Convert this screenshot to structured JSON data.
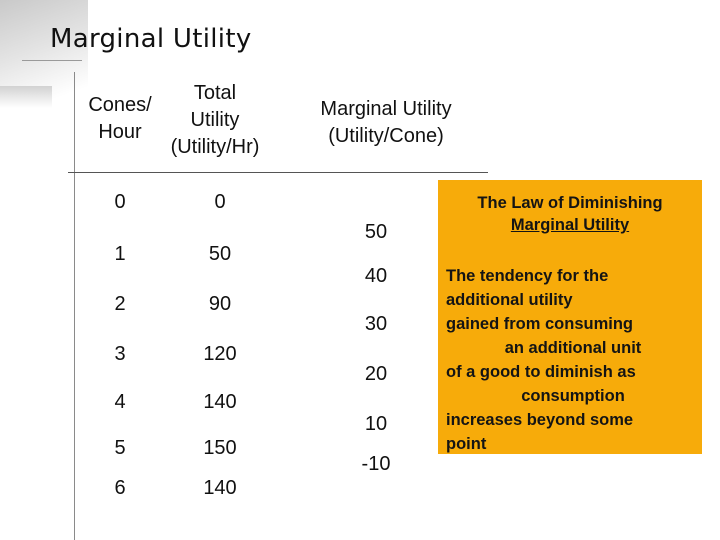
{
  "slide": {
    "title": "Marginal Utility"
  },
  "table": {
    "headers": {
      "cones_hour": [
        "Cones/",
        "Hour"
      ],
      "total_utility": [
        "Total",
        "Utility",
        "(Utility/Hr)"
      ],
      "marginal_utility": [
        "Marginal Utility",
        "(Utility/Cone)"
      ]
    },
    "rows": [
      {
        "cones": "0",
        "total_utility": "0"
      },
      {
        "cones": "1",
        "total_utility": "50"
      },
      {
        "cones": "2",
        "total_utility": "90"
      },
      {
        "cones": "3",
        "total_utility": "120"
      },
      {
        "cones": "4",
        "total_utility": "140"
      },
      {
        "cones": "5",
        "total_utility": "150"
      },
      {
        "cones": "6",
        "total_utility": "140"
      }
    ],
    "marginal_values": [
      "50",
      "40",
      "30",
      "20",
      "10",
      "-10"
    ]
  },
  "callout": {
    "title": [
      "The Law of Diminishing",
      "Marginal Utility"
    ],
    "body": [
      "The tendency for the",
      "additional utility",
      "gained from consuming",
      "an additional unit",
      "of a good to diminish as",
      "consumption",
      "increases beyond some",
      "point"
    ],
    "background": "#f7ab0a"
  }
}
